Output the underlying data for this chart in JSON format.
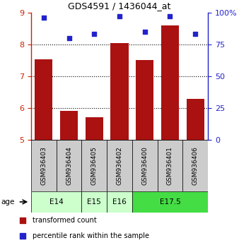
{
  "title": "GDS4591 / 1436044_at",
  "samples": [
    "GSM936403",
    "GSM936404",
    "GSM936405",
    "GSM936402",
    "GSM936400",
    "GSM936401",
    "GSM936406"
  ],
  "bar_values": [
    7.52,
    5.92,
    5.72,
    8.05,
    7.5,
    8.6,
    6.28
  ],
  "percentile_values": [
    96,
    80,
    83,
    97,
    85,
    97,
    83
  ],
  "bar_color": "#aa1111",
  "dot_color": "#2222cc",
  "left_ylim": [
    5,
    9
  ],
  "left_yticks": [
    5,
    6,
    7,
    8,
    9
  ],
  "right_ylim": [
    0,
    100
  ],
  "right_yticks": [
    0,
    25,
    50,
    75,
    100
  ],
  "right_yticklabels": [
    "0",
    "25",
    "50",
    "75",
    "100%"
  ],
  "age_groups": [
    {
      "label": "E14",
      "indices": [
        0,
        1
      ],
      "color": "#ccffcc"
    },
    {
      "label": "E15",
      "indices": [
        2
      ],
      "color": "#ccffcc"
    },
    {
      "label": "E16",
      "indices": [
        3
      ],
      "color": "#ccffcc"
    },
    {
      "label": "E17.5",
      "indices": [
        4,
        5,
        6
      ],
      "color": "#44dd44"
    }
  ],
  "legend_bar_label": "transformed count",
  "legend_dot_label": "percentile rank within the sample",
  "bar_width": 0.7,
  "sample_box_color": "#cccccc",
  "grid_yticks": [
    6,
    7,
    8
  ]
}
